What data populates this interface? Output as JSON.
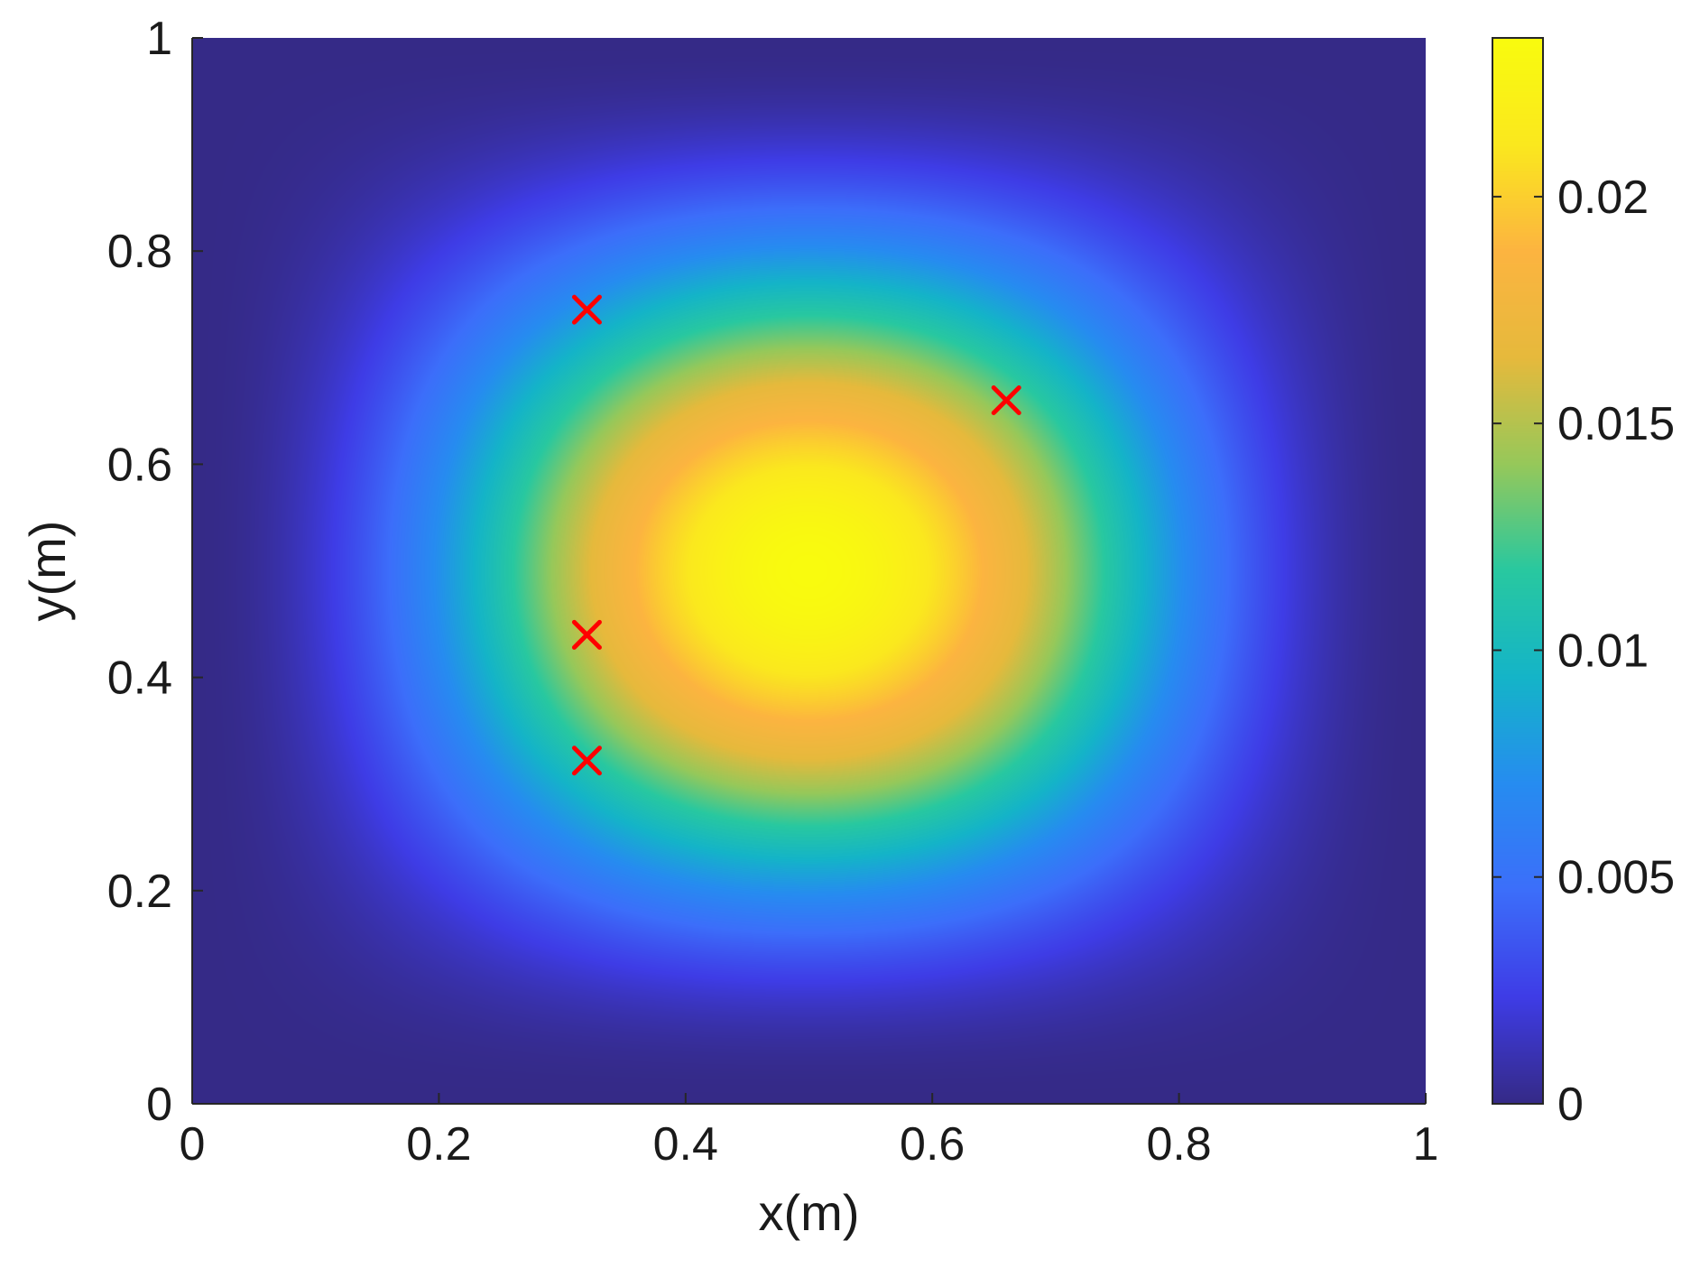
{
  "chart_data": {
    "type": "heatmap",
    "title": "",
    "xlabel": "x(m)",
    "ylabel": "y(m)",
    "xlim": [
      0,
      1
    ],
    "ylim": [
      0,
      1
    ],
    "x_ticks": [
      "0",
      "0.2",
      "0.4",
      "0.6",
      "0.8",
      "1"
    ],
    "y_ticks": [
      "0",
      "0.2",
      "0.4",
      "0.6",
      "0.8",
      "1"
    ],
    "colorbar": {
      "min": 0,
      "max": 0.0235,
      "ticks": [
        "0",
        "0.005",
        "0.01",
        "0.015",
        "0.02"
      ],
      "tick_values": [
        0,
        0.005,
        0.01,
        0.015,
        0.02
      ],
      "colormap": "parula"
    },
    "field": {
      "peak_value": 0.0235,
      "peak_x": 0.5,
      "peak_y": 0.5,
      "zero_on_boundary": true
    },
    "markers": {
      "symbol": "x",
      "color": "#ff0000",
      "points": [
        {
          "x": 0.32,
          "y": 0.745
        },
        {
          "x": 0.66,
          "y": 0.66
        },
        {
          "x": 0.32,
          "y": 0.44
        },
        {
          "x": 0.32,
          "y": 0.322
        }
      ]
    },
    "grid": false
  }
}
